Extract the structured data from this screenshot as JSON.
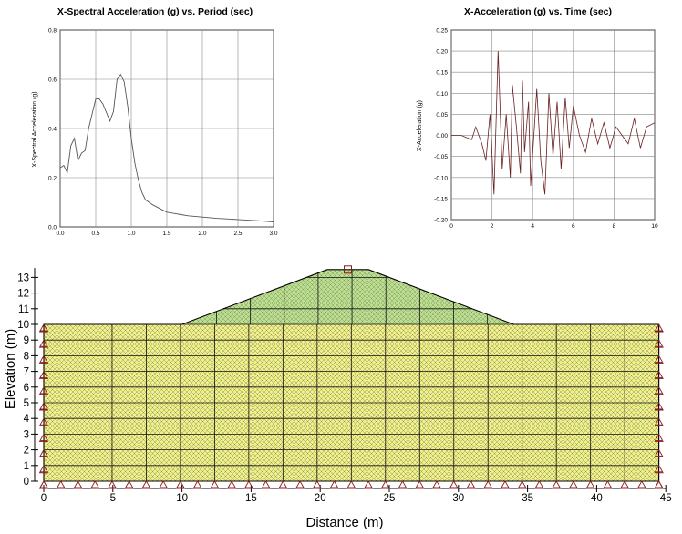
{
  "spectral_chart": {
    "title": "X-Spectral Acceleration (g) vs. Period (sec)",
    "ylabel": "X-Spectral Acceleration (g)",
    "x_ticks": [
      "0.0",
      "0.5",
      "1.0",
      "1.5",
      "2.0",
      "2.5",
      "3.0"
    ],
    "y_ticks": [
      "0.8",
      "0.6",
      "0.4",
      "0.2",
      "0.0"
    ]
  },
  "accel_chart": {
    "title": "X-Acceleration (g) vs. Time (sec)",
    "ylabel": "X-Acceleration (g)",
    "x_ticks": [
      "0",
      "2",
      "4",
      "6",
      "8",
      "10"
    ],
    "y_ticks": [
      "0.25",
      "0.20",
      "0.15",
      "0.10",
      "0.05",
      "0.00",
      "-0.05",
      "-0.10",
      "-0.15",
      "-0.20"
    ]
  },
  "mesh": {
    "xlabel": "Distance (m)",
    "ylabel": "Elevation (m)",
    "x_ticks": [
      "0",
      "5",
      "10",
      "15",
      "20",
      "25",
      "30",
      "35",
      "40",
      "45"
    ],
    "y_ticks": [
      "0",
      "1",
      "2",
      "3",
      "4",
      "5",
      "6",
      "7",
      "8",
      "9",
      "10",
      "11",
      "12",
      "13"
    ],
    "foundation_color": "#f0f08a",
    "embankment_color": "#b8e090"
  },
  "chart_data": [
    {
      "type": "line",
      "title": "X-Spectral Acceleration (g) vs. Period (sec)",
      "xlabel": "",
      "ylabel": "X-Spectral Acceleration (g)",
      "xlim": [
        0,
        3.0
      ],
      "ylim": [
        0,
        0.8
      ],
      "grid": true,
      "x": [
        0.0,
        0.05,
        0.1,
        0.15,
        0.2,
        0.25,
        0.3,
        0.35,
        0.4,
        0.45,
        0.5,
        0.55,
        0.6,
        0.7,
        0.75,
        0.8,
        0.85,
        0.9,
        0.95,
        1.0,
        1.05,
        1.1,
        1.15,
        1.2,
        1.3,
        1.4,
        1.5,
        1.6,
        1.7,
        1.8,
        2.0,
        2.2,
        2.5,
        2.8,
        3.0
      ],
      "y": [
        0.24,
        0.25,
        0.22,
        0.33,
        0.36,
        0.27,
        0.3,
        0.31,
        0.4,
        0.46,
        0.52,
        0.52,
        0.5,
        0.43,
        0.47,
        0.6,
        0.62,
        0.59,
        0.49,
        0.36,
        0.26,
        0.19,
        0.14,
        0.11,
        0.09,
        0.075,
        0.06,
        0.055,
        0.05,
        0.045,
        0.04,
        0.035,
        0.03,
        0.025,
        0.02
      ]
    },
    {
      "type": "line",
      "title": "X-Acceleration (g) vs. Time (sec)",
      "xlabel": "",
      "ylabel": "X-Acceleration (g)",
      "xlim": [
        0,
        10
      ],
      "ylim": [
        -0.2,
        0.25
      ],
      "grid": true,
      "x": [
        0,
        0.5,
        1.0,
        1.2,
        1.5,
        1.7,
        1.9,
        2.1,
        2.3,
        2.5,
        2.7,
        2.9,
        3.0,
        3.2,
        3.4,
        3.5,
        3.6,
        3.8,
        3.9,
        4.1,
        4.2,
        4.4,
        4.6,
        4.8,
        5.0,
        5.2,
        5.4,
        5.6,
        5.8,
        6.0,
        6.3,
        6.6,
        6.9,
        7.2,
        7.5,
        7.8,
        8.1,
        8.4,
        8.7,
        9.0,
        9.3,
        9.6,
        10.0
      ],
      "y": [
        0.0,
        0.0,
        -0.01,
        0.02,
        -0.02,
        -0.06,
        0.05,
        -0.14,
        0.2,
        -0.08,
        0.05,
        -0.1,
        0.12,
        0.02,
        -0.09,
        0.13,
        -0.04,
        0.08,
        -0.12,
        0.03,
        0.11,
        -0.06,
        -0.14,
        0.1,
        -0.05,
        0.08,
        -0.08,
        0.09,
        -0.03,
        0.07,
        0.0,
        -0.04,
        0.04,
        -0.02,
        0.03,
        -0.03,
        0.02,
        0.0,
        -0.02,
        0.04,
        -0.03,
        0.02,
        0.03
      ]
    }
  ]
}
